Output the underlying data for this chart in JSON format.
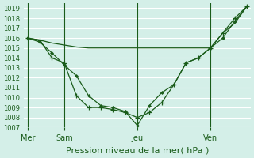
{
  "title": "Pression niveau de la mer( hPa )",
  "background_color": "#d4efe8",
  "grid_color": "#ffffff",
  "line_color": "#1a5c1a",
  "ylim": [
    1007,
    1019.5
  ],
  "yticks": [
    1007,
    1008,
    1009,
    1010,
    1011,
    1012,
    1013,
    1014,
    1015,
    1016,
    1017,
    1018,
    1019
  ],
  "day_labels": [
    "Mer",
    "Sam",
    "Jeu",
    "Ven"
  ],
  "day_positions": [
    0,
    3,
    9,
    15
  ],
  "series1_x": [
    0,
    1,
    2,
    3,
    4,
    5,
    6,
    7,
    8,
    9,
    10,
    11,
    12,
    13,
    14,
    15,
    16,
    17,
    18
  ],
  "series1_y": [
    1016.0,
    1015.8,
    1015.5,
    1015.3,
    1015.1,
    1015.0,
    1015.0,
    1015.0,
    1015.0,
    1015.0,
    1015.0,
    1015.0,
    1015.0,
    1015.0,
    1015.0,
    1015.0,
    1016.5,
    1017.5,
    1019.2
  ],
  "series2_x": [
    0,
    1,
    2,
    3,
    4,
    5,
    6,
    7,
    8,
    9,
    10,
    11,
    12,
    13,
    14,
    15,
    16,
    17,
    18
  ],
  "series2_y": [
    1016.0,
    1015.8,
    1014.0,
    1013.5,
    1010.2,
    1009.0,
    1009.0,
    1008.8,
    1008.5,
    1008.0,
    1008.5,
    1009.5,
    1011.3,
    1013.5,
    1014.0,
    1015.0,
    1016.5,
    1018.0,
    1019.2
  ],
  "series3_x": [
    0,
    1,
    2,
    3,
    4,
    5,
    6,
    7,
    8,
    9,
    10,
    11,
    12,
    13,
    14,
    15,
    16,
    17,
    18
  ],
  "series3_y": [
    1016.0,
    1015.6,
    1014.5,
    1013.3,
    1012.2,
    1010.2,
    1009.2,
    1009.0,
    1008.6,
    1007.2,
    1009.2,
    1010.5,
    1011.3,
    1013.5,
    1014.0,
    1015.0,
    1016.0,
    1017.7,
    1019.2
  ]
}
